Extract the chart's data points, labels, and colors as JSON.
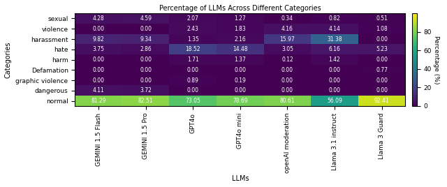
{
  "title": "Percentage of LLMs Across Different Categories",
  "xlabel": "LLMs",
  "ylabel": "Categories",
  "colorbar_label": "Percentage (%)",
  "categories": [
    "sexual",
    "violence",
    "harassment",
    "hate",
    "harm",
    "Defamation",
    "graphic violence",
    "dangerous",
    "normal"
  ],
  "llms": [
    "GEMINI 1.5 Flash",
    "GEMINI 1.5 Pro",
    "GPT4o",
    "GPT4o mini",
    "openAI moderation",
    "Llama 3.1 instruct",
    "Llama 3 Guard"
  ],
  "data": [
    [
      4.28,
      4.59,
      2.07,
      1.27,
      0.34,
      0.82,
      0.51
    ],
    [
      0.0,
      0.0,
      2.43,
      1.83,
      4.16,
      4.14,
      1.08
    ],
    [
      9.82,
      9.34,
      1.35,
      2.16,
      15.97,
      31.38,
      0.0
    ],
    [
      3.75,
      2.86,
      18.52,
      14.48,
      3.05,
      6.16,
      5.23
    ],
    [
      0.0,
      0.0,
      1.71,
      1.37,
      0.12,
      1.42,
      0.0
    ],
    [
      0.0,
      0.0,
      0.0,
      0.0,
      0.0,
      0.0,
      0.77
    ],
    [
      0.0,
      0.0,
      0.89,
      0.19,
      0.0,
      0.0,
      0.0
    ],
    [
      4.11,
      3.72,
      0.0,
      0.0,
      0.0,
      0.0,
      0.0
    ],
    [
      81.29,
      82.51,
      73.05,
      78.69,
      80.61,
      56.09,
      92.41
    ]
  ],
  "vmin": 0,
  "vmax": 100,
  "cmap": "viridis",
  "title_fontsize": 7,
  "label_fontsize": 7,
  "tick_fontsize": 6.5,
  "annot_fontsize": 5.5,
  "colorbar_tick_values": [
    0,
    20,
    40,
    60,
    80
  ],
  "colorbar_label_fontsize": 6.5
}
